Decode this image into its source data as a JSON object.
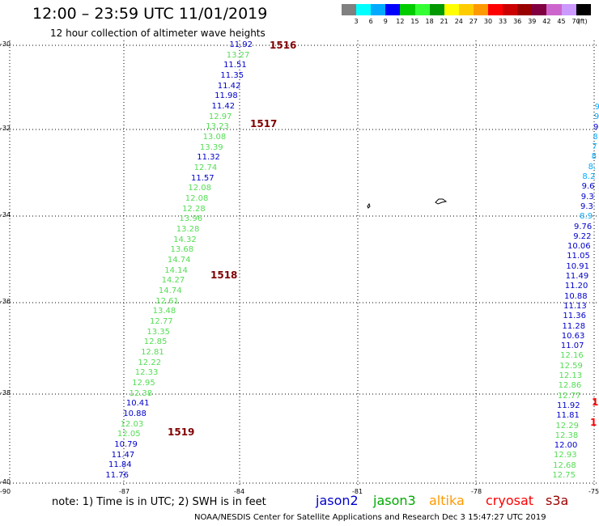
{
  "title": "12:00 – 23:59 UTC 11/01/2019",
  "subtitle": "12 hour collection of altimeter wave heights",
  "color_scale": {
    "unit": "(ft)",
    "colors": [
      "#808080",
      "#00ffff",
      "#00aaff",
      "#0000ff",
      "#00cc00",
      "#33ff33",
      "#009900",
      "#ffff00",
      "#ffcc00",
      "#ff9900",
      "#ff0000",
      "#cc0000",
      "#990000",
      "#800040",
      "#cc66cc",
      "#cc99ff",
      "#000000"
    ],
    "labels": [
      "3",
      "6",
      "9",
      "12",
      "15",
      "18",
      "21",
      "24",
      "27",
      "30",
      "33",
      "36",
      "39",
      "42",
      "45",
      "70"
    ]
  },
  "lat_labels": [
    "-30",
    "-32",
    "-34",
    "-36",
    "-38",
    "-40"
  ],
  "lon_labels": [
    "-90",
    "-87",
    "-84",
    "-81",
    "-78",
    "-75"
  ],
  "pass_labels": [
    {
      "text": "1516",
      "x": 333,
      "y": 56
    },
    {
      "text": "1517",
      "x": 309,
      "y": 153
    },
    {
      "text": "1518",
      "x": 260,
      "y": 340
    },
    {
      "text": "1519",
      "x": 207,
      "y": 534
    }
  ],
  "track_left": [
    {
      "v": "11.92",
      "c": "#0000cc"
    },
    {
      "v": "13.27",
      "c": "#55dd55"
    },
    {
      "v": "11.51",
      "c": "#0000cc"
    },
    {
      "v": "11.35",
      "c": "#0000cc"
    },
    {
      "v": "11.42",
      "c": "#0000cc"
    },
    {
      "v": "11.98",
      "c": "#0000cc"
    },
    {
      "v": "11.42",
      "c": "#0000cc"
    },
    {
      "v": "12.97",
      "c": "#55dd55"
    },
    {
      "v": "13.23",
      "c": "#55dd55"
    },
    {
      "v": "13.08",
      "c": "#55dd55"
    },
    {
      "v": "13.39",
      "c": "#55dd55"
    },
    {
      "v": "11.32",
      "c": "#0000cc"
    },
    {
      "v": "12.74",
      "c": "#55dd55"
    },
    {
      "v": "11.57",
      "c": "#0000cc"
    },
    {
      "v": "12.08",
      "c": "#55dd55"
    },
    {
      "v": "12.08",
      "c": "#55dd55"
    },
    {
      "v": "12.28",
      "c": "#55dd55"
    },
    {
      "v": "13.96",
      "c": "#55dd55"
    },
    {
      "v": "13.28",
      "c": "#55dd55"
    },
    {
      "v": "14.32",
      "c": "#55dd55"
    },
    {
      "v": "13.68",
      "c": "#55dd55"
    },
    {
      "v": "14.74",
      "c": "#55dd55"
    },
    {
      "v": "14.14",
      "c": "#55dd55"
    },
    {
      "v": "14.27",
      "c": "#55dd55"
    },
    {
      "v": "14.74",
      "c": "#55dd55"
    },
    {
      "v": "12.61",
      "c": "#55dd55"
    },
    {
      "v": "13.48",
      "c": "#55dd55"
    },
    {
      "v": "12.77",
      "c": "#55dd55"
    },
    {
      "v": "13.35",
      "c": "#55dd55"
    },
    {
      "v": "12.85",
      "c": "#55dd55"
    },
    {
      "v": "12.81",
      "c": "#55dd55"
    },
    {
      "v": "12.22",
      "c": "#55dd55"
    },
    {
      "v": "12.33",
      "c": "#55dd55"
    },
    {
      "v": "12.95",
      "c": "#55dd55"
    },
    {
      "v": "12.38",
      "c": "#55dd55"
    },
    {
      "v": "10.41",
      "c": "#0000cc"
    },
    {
      "v": "10.88",
      "c": "#0000cc"
    },
    {
      "v": "12.03",
      "c": "#55dd55"
    },
    {
      "v": "12.05",
      "c": "#55dd55"
    },
    {
      "v": "10.79",
      "c": "#0000cc"
    },
    {
      "v": "11.47",
      "c": "#0000cc"
    },
    {
      "v": "11.84",
      "c": "#0000cc"
    },
    {
      "v": "11.76",
      "c": "#0000cc"
    }
  ],
  "track_right": [
    {
      "v": "9",
      "c": "#00aaff"
    },
    {
      "v": "9",
      "c": "#00aaff"
    },
    {
      "v": "9",
      "c": "#0000cc"
    },
    {
      "v": "8",
      "c": "#00aaff"
    },
    {
      "v": "7",
      "c": "#00aaff"
    },
    {
      "v": "8",
      "c": "#00aaff"
    },
    {
      "v": "8.",
      "c": "#00aaff"
    },
    {
      "v": "8.2",
      "c": "#00aaff"
    },
    {
      "v": "9.6",
      "c": "#0000cc"
    },
    {
      "v": "9.3",
      "c": "#0000cc"
    },
    {
      "v": "9.3",
      "c": "#0000cc"
    },
    {
      "v": "8.9",
      "c": "#00aaff"
    },
    {
      "v": "9.76",
      "c": "#0000cc"
    },
    {
      "v": "9.22",
      "c": "#0000cc"
    },
    {
      "v": "10.06",
      "c": "#0000cc"
    },
    {
      "v": "11.05",
      "c": "#0000cc"
    },
    {
      "v": "10.91",
      "c": "#0000cc"
    },
    {
      "v": "11.49",
      "c": "#0000cc"
    },
    {
      "v": "11.20",
      "c": "#0000cc"
    },
    {
      "v": "10.88",
      "c": "#0000cc"
    },
    {
      "v": "11.13",
      "c": "#0000cc"
    },
    {
      "v": "11.36",
      "c": "#0000cc"
    },
    {
      "v": "11.28",
      "c": "#0000cc"
    },
    {
      "v": "10.63",
      "c": "#0000cc"
    },
    {
      "v": "11.07",
      "c": "#0000cc"
    },
    {
      "v": "12.16",
      "c": "#55dd55"
    },
    {
      "v": "12.59",
      "c": "#55dd55"
    },
    {
      "v": "12.13",
      "c": "#55dd55"
    },
    {
      "v": "12.86",
      "c": "#55dd55"
    },
    {
      "v": "12.77",
      "c": "#55dd55"
    },
    {
      "v": "11.92",
      "c": "#0000cc"
    },
    {
      "v": "11.81",
      "c": "#0000cc"
    },
    {
      "v": "12.29",
      "c": "#55dd55"
    },
    {
      "v": "12.38",
      "c": "#55dd55"
    },
    {
      "v": "12.00",
      "c": "#0000cc"
    },
    {
      "v": "12.93",
      "c": "#55dd55"
    },
    {
      "v": "12.68",
      "c": "#55dd55"
    },
    {
      "v": "12.75",
      "c": "#55dd55"
    }
  ],
  "note": "note: 1) Time is in UTC; 2) SWH is in feet",
  "legend": [
    {
      "name": "jason2",
      "color": "#0000cc"
    },
    {
      "name": "jason3",
      "color": "#00aa00"
    },
    {
      "name": "altika",
      "color": "#ff9900"
    },
    {
      "name": "cryosat",
      "color": "#ff0000"
    },
    {
      "name": "s3a",
      "color": "#990000"
    }
  ],
  "credit": "NOAA/NESDIS Center for Satellite Applications and Research    Dec  3 15:47:27 UTC 2019"
}
